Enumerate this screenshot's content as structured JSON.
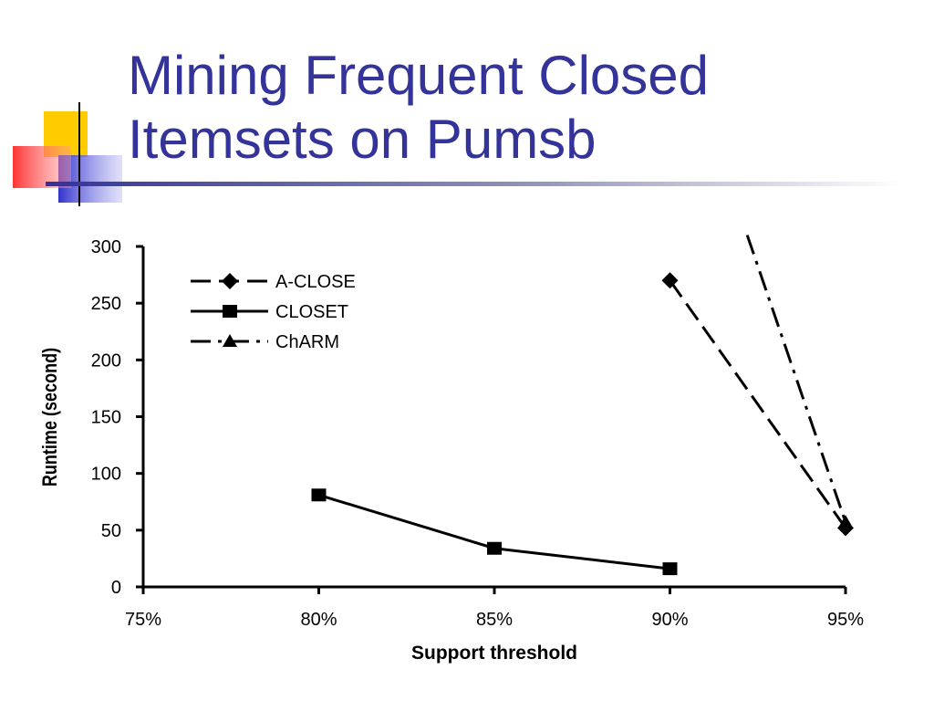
{
  "slide": {
    "title_lines": [
      "Mining Frequent Closed",
      "Itemsets on Pumsb"
    ],
    "colors": {
      "title": "#333399",
      "accent_yellow": "#FFCC00",
      "accent_blue": "#3333CC",
      "accent_red": "#FF3333"
    }
  },
  "chart_data": {
    "type": "line",
    "title": "",
    "xlabel": "Support threshold",
    "ylabel": "Runtime (second)",
    "x_ticks": [
      "75%",
      "80%",
      "85%",
      "90%",
      "95%"
    ],
    "x_tick_values": [
      75,
      80,
      85,
      90,
      95
    ],
    "xlim": [
      75,
      95
    ],
    "y_ticks": [
      "0",
      "50",
      "100",
      "150",
      "200",
      "250",
      "300"
    ],
    "y_tick_values": [
      0,
      50,
      100,
      150,
      200,
      250,
      300
    ],
    "ylim": [
      0,
      300
    ],
    "grid": false,
    "legend_position": "top-left",
    "series": [
      {
        "name": "A-CLOSE",
        "marker": "diamond",
        "dash": "long-dash",
        "x": [
          90,
          95
        ],
        "y": [
          270,
          52
        ]
      },
      {
        "name": "CLOSET",
        "marker": "square",
        "dash": "solid",
        "x": [
          80,
          85,
          90
        ],
        "y": [
          81,
          34,
          16
        ]
      },
      {
        "name": "ChARM",
        "marker": "triangle",
        "dash": "dash-dot",
        "x": [
          92.2,
          95
        ],
        "y": [
          310,
          57
        ]
      }
    ]
  }
}
